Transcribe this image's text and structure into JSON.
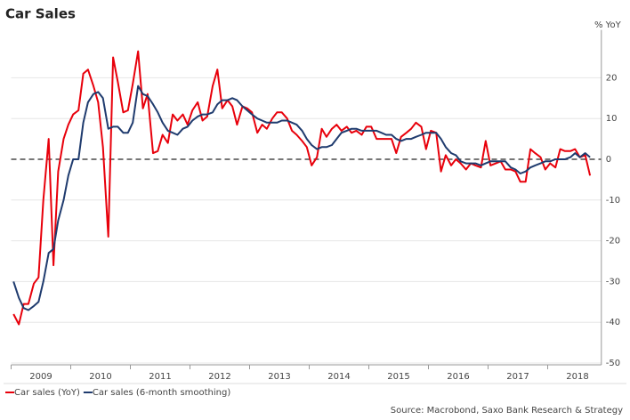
{
  "chart_data": {
    "type": "line",
    "title": "Car Sales",
    "y_axis_label": "% YoY",
    "source": "Source: Macrobond, Saxo Bank Research & Strategy",
    "x": [
      2009.04,
      2009.13,
      2009.21,
      2009.29,
      2009.38,
      2009.46,
      2009.54,
      2009.63,
      2009.71,
      2009.79,
      2009.88,
      2009.96,
      2010.04,
      2010.13,
      2010.21,
      2010.29,
      2010.38,
      2010.46,
      2010.54,
      2010.63,
      2010.71,
      2010.79,
      2010.88,
      2010.96,
      2011.04,
      2011.13,
      2011.21,
      2011.29,
      2011.38,
      2011.46,
      2011.54,
      2011.63,
      2011.71,
      2011.79,
      2011.88,
      2011.96,
      2012.04,
      2012.13,
      2012.21,
      2012.29,
      2012.38,
      2012.46,
      2012.54,
      2012.63,
      2012.71,
      2012.79,
      2012.88,
      2012.96,
      2013.04,
      2013.13,
      2013.21,
      2013.29,
      2013.38,
      2013.46,
      2013.54,
      2013.63,
      2013.71,
      2013.79,
      2013.88,
      2013.96,
      2014.04,
      2014.13,
      2014.21,
      2014.29,
      2014.38,
      2014.46,
      2014.54,
      2014.63,
      2014.71,
      2014.79,
      2014.88,
      2014.96,
      2015.04,
      2015.13,
      2015.21,
      2015.29,
      2015.38,
      2015.46,
      2015.54,
      2015.63,
      2015.71,
      2015.79,
      2015.88,
      2015.96,
      2016.04,
      2016.13,
      2016.21,
      2016.29,
      2016.38,
      2016.46,
      2016.54,
      2016.63,
      2016.71,
      2016.79,
      2016.88,
      2016.96,
      2017.04,
      2017.13,
      2017.21,
      2017.29,
      2017.38,
      2017.46,
      2017.54,
      2017.63,
      2017.71,
      2017.79,
      2017.88,
      2017.96,
      2018.04,
      2018.13,
      2018.21,
      2018.29,
      2018.38,
      2018.46,
      2018.54,
      2018.63,
      2018.71
    ],
    "series": [
      {
        "name": "Car sales (YoY)",
        "color": "#e8000b",
        "values": [
          -38,
          -40.5,
          -35.5,
          -35.5,
          -30.5,
          -29,
          -10,
          5,
          -26,
          -3,
          5,
          8.5,
          11,
          12,
          21,
          22,
          18,
          14,
          3,
          -19,
          25,
          19,
          11.5,
          12,
          18.5,
          26.5,
          12.5,
          16,
          1.5,
          2,
          6,
          4,
          11,
          9.5,
          11,
          8.5,
          12,
          14,
          9.5,
          10.5,
          18,
          22,
          12.5,
          14.5,
          13,
          8.5,
          13,
          12.5,
          11.5,
          6.5,
          8.5,
          7.5,
          10,
          11.5,
          11.5,
          10,
          7,
          6,
          4.5,
          3,
          -1.5,
          0.5,
          7.5,
          5.5,
          7.5,
          8.5,
          7,
          8,
          6.5,
          7,
          6,
          8,
          8,
          5,
          5,
          5,
          5,
          1.5,
          5.5,
          6.5,
          7.5,
          9,
          8,
          2.5,
          7,
          6.5,
          -3,
          1,
          -1.5,
          0,
          -1,
          -2.5,
          -1,
          -1.5,
          -2,
          4.5,
          -1.5,
          -1,
          -0.5,
          -2.5,
          -2.5,
          -3,
          -5.5,
          -5.5,
          2.5,
          1.5,
          0.5,
          -2.5,
          -1,
          -2,
          2.5,
          2,
          2,
          2.5,
          0.5,
          1,
          -4
        ]
      },
      {
        "name": "Car sales (6-month smoothing)",
        "color": "#1f3b6e",
        "values": [
          -30,
          -34,
          -36.5,
          -37,
          -36,
          -35,
          -30,
          -23,
          -22,
          -15,
          -10,
          -4,
          0,
          0,
          9,
          14,
          16,
          16.5,
          15,
          7.5,
          8,
          8,
          6.5,
          6.5,
          9,
          18,
          16,
          15.5,
          13.5,
          11.5,
          9,
          7,
          6.5,
          6,
          7.5,
          8,
          9.5,
          10.5,
          11,
          11,
          11.5,
          13.5,
          14.5,
          14.5,
          15,
          14.5,
          13,
          12,
          11,
          10,
          9.5,
          9,
          9,
          9,
          9.5,
          9.5,
          9,
          8.5,
          7,
          5,
          3.5,
          2.5,
          3,
          3,
          3.5,
          5,
          6.5,
          7,
          7.5,
          7.5,
          7,
          7,
          7,
          7,
          6.5,
          6,
          6,
          5,
          4.5,
          5,
          5,
          5.5,
          6,
          6.5,
          6.5,
          6.5,
          5,
          3,
          1.5,
          1,
          -0.5,
          -1,
          -1,
          -1,
          -1.5,
          -1,
          -0.5,
          -0.5,
          -0.5,
          -0.5,
          -2,
          -2.5,
          -3.5,
          -3,
          -2,
          -1.5,
          -1,
          -0.5,
          -0.5,
          0,
          0,
          0,
          0.5,
          1.5,
          0.5,
          1.5,
          0.5
        ]
      }
    ],
    "xlim": [
      2009,
      2018.9
    ],
    "xticks": [
      {
        "value": 2009.5,
        "label": "2009"
      },
      {
        "value": 2010.5,
        "label": "2010"
      },
      {
        "value": 2011.5,
        "label": "2011"
      },
      {
        "value": 2012.5,
        "label": "2012"
      },
      {
        "value": 2013.5,
        "label": "2013"
      },
      {
        "value": 2014.5,
        "label": "2014"
      },
      {
        "value": 2015.5,
        "label": "2015"
      },
      {
        "value": 2016.5,
        "label": "2016"
      },
      {
        "value": 2017.5,
        "label": "2017"
      },
      {
        "value": 2018.5,
        "label": "2018"
      }
    ],
    "xminor_ticks": [
      2009,
      2010,
      2011,
      2012,
      2013,
      2014,
      2015,
      2016,
      2017,
      2018
    ],
    "ylim": [
      -50,
      30
    ],
    "yticks": [
      -50,
      -40,
      -30,
      -20,
      -10,
      0,
      10,
      20
    ],
    "grid": true,
    "legend": "bottom-left"
  }
}
